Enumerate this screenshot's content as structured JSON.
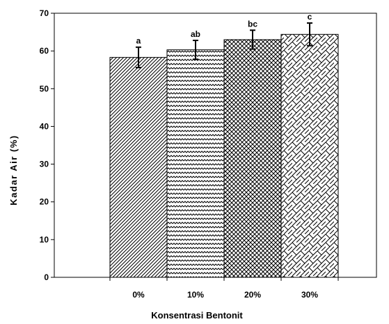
{
  "chart_data": {
    "type": "bar",
    "xlabel": "Konsentrasi Bentonit",
    "ylabel": "Kadar Air (%)",
    "ylim": [
      0,
      70
    ],
    "yticks": [
      "0",
      "10",
      "20",
      "30",
      "40",
      "50",
      "60",
      "70"
    ],
    "categories": [
      "0%",
      "10%",
      "20%",
      "30%"
    ],
    "values": [
      58.3,
      60.3,
      63.0,
      64.4
    ],
    "errors": [
      2.7,
      2.5,
      2.5,
      3.0
    ],
    "significance_labels": [
      "a",
      "ab",
      "bc",
      "c"
    ],
    "patterns": [
      "diagonal-lines",
      "zigzag",
      "crosshatch",
      "brick"
    ],
    "grid": false
  }
}
